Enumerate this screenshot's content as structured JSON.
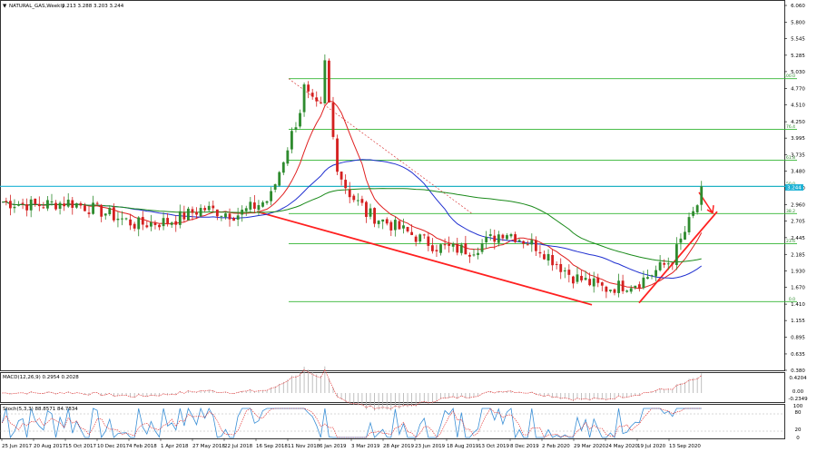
{
  "window": {
    "symbol_label": "NATURAL_GAS,Weekly",
    "ohlc_text": "3.213 3.288 3.203 3.244",
    "current_price_tag": "3.244"
  },
  "price_axis": {
    "ticks": [
      "6.060",
      "5.800",
      "5.545",
      "5.285",
      "5.030",
      "4.770",
      "4.510",
      "4.250",
      "3.995",
      "3.735",
      "3.480",
      "3.220",
      "2.960",
      "2.705",
      "2.445",
      "2.185",
      "1.930",
      "1.670",
      "1.410",
      "1.155",
      "0.895",
      "0.635",
      "0.380"
    ]
  },
  "macd": {
    "label": "MACD(12,26,9) 0.2954 0.2028",
    "ticks": [
      "0.4204",
      "0.00",
      "-0.2349"
    ]
  },
  "stoch": {
    "label": "Stoch(5,3,3) 88.8571 84.7834",
    "ticks": [
      "100",
      "80",
      "20",
      "0"
    ]
  },
  "date_axis": {
    "labels": [
      "25 Jun 2017",
      "20 Aug 2017",
      "15 Oct 2017",
      "10 Dec 2017",
      "4 Feb 2018",
      "1 Apr 2018",
      "27 May 2018",
      "22 Jul 2018",
      "16 Sep 2018",
      "11 Nov 2018",
      "6 Jan 2019",
      "3 Mar 2019",
      "28 Apr 2019",
      "23 Jun 2019",
      "18 Aug 2019",
      "13 Oct 2019",
      "8 Dec 2019",
      "2 Feb 2020",
      "29 Mar 2020",
      "24 May 2020",
      "19 Jul 2020",
      "13 Sep 2020"
    ]
  },
  "fibonacci": {
    "levels": [
      "100.0",
      "76.4",
      "61.8",
      "50.0",
      "38.2",
      "23.6",
      "0.0"
    ],
    "prices": [
      4.92,
      4.13,
      3.65,
      3.24,
      2.82,
      2.35,
      1.45
    ]
  },
  "colors": {
    "bull_candle": "#2e8b2e",
    "bear_candle": "#d42020",
    "fast_ma": "#e02020",
    "mid_ma": "#2030d0",
    "slow_ma": "#1a8a1a",
    "fib_line": "#33b533",
    "price_line": "#1fb3d6",
    "trendline": "#ff2020"
  },
  "chart_data": {
    "type": "candlestick",
    "title": "NATURAL_GAS,Weekly",
    "x_axis": "weekly dates, 25 Jun 2017 to Sep 2020",
    "ylim": [
      0.38,
      6.06
    ],
    "last_close": 3.244,
    "weekly_close_trajectory": [
      [
        "25 Jun 2017",
        3.0
      ],
      [
        "20 Aug 2017",
        2.95
      ],
      [
        "15 Oct 2017",
        3.0
      ],
      [
        "10 Dec 2017",
        2.85
      ],
      [
        "4 Feb 2018",
        2.65
      ],
      [
        "1 Apr 2018",
        2.7
      ],
      [
        "27 May 2018",
        2.9
      ],
      [
        "22 Jul 2018",
        2.8
      ],
      [
        "16 Sep 2018",
        3.05
      ],
      [
        "11 Nov 2018",
        4.6
      ],
      [
        "6 Jan 2019",
        2.95
      ],
      [
        "3 Mar 2019",
        2.8
      ],
      [
        "28 Apr 2019",
        2.55
      ],
      [
        "23 Jun 2019",
        2.3
      ],
      [
        "18 Aug 2019",
        2.25
      ],
      [
        "13 Oct 2019",
        2.55
      ],
      [
        "8 Dec 2019",
        2.3
      ],
      [
        "2 Feb 2020",
        1.85
      ],
      [
        "29 Mar 2020",
        1.65
      ],
      [
        "24 May 2020",
        1.75
      ],
      [
        "19 Jul 2020",
        2.1
      ],
      [
        "13 Sep 2020",
        3.24
      ]
    ],
    "indicators": {
      "MACD(12,26,9)": [
        0.2954,
        0.2028
      ],
      "Stoch(5,3,3)": [
        88.8571,
        84.7834
      ]
    }
  }
}
